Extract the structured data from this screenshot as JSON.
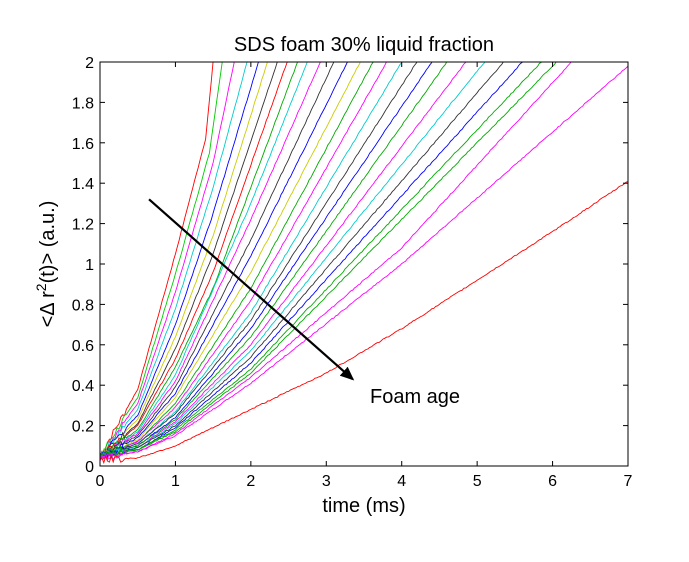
{
  "chart_data": {
    "type": "line",
    "title": "SDS foam 30% liquid fraction",
    "xlabel": "time (ms)",
    "ylabel": {
      "prefix": "<Δ r",
      "sup": "2",
      "suffix": "(t)> (a.u.)"
    },
    "xlim": [
      0,
      7
    ],
    "ylim": [
      0,
      2
    ],
    "x_ticks": [
      0,
      1,
      2,
      3,
      4,
      5,
      6,
      7
    ],
    "y_ticks": [
      0,
      0.2,
      0.4,
      0.6,
      0.8,
      1,
      1.2,
      1.4,
      1.6,
      1.8,
      2
    ],
    "y_tick_labels": [
      "0",
      "0.2",
      "0.4",
      "0.6",
      "0.8",
      "1",
      "1.2",
      "1.4",
      "1.6",
      "1.8",
      "2"
    ],
    "grid": false,
    "legend": "none",
    "annotation": {
      "text": "Foam age",
      "arrow_from": [
        0.65,
        1.32
      ],
      "arrow_to": [
        3.35,
        0.43
      ]
    },
    "series": [
      {
        "color": "#ff0000",
        "points": [
          [
            0,
            0.05
          ],
          [
            0.5,
            0.38
          ],
          [
            1.0,
            1.05
          ],
          [
            1.4,
            1.62
          ],
          [
            1.5,
            2.0
          ]
        ]
      },
      {
        "color": "#00cc00",
        "points": [
          [
            0,
            0.05
          ],
          [
            0.5,
            0.34
          ],
          [
            1.0,
            0.95
          ],
          [
            1.45,
            1.55
          ],
          [
            1.62,
            2.0
          ]
        ]
      },
      {
        "color": "#ff00ff",
        "points": [
          [
            0,
            0.05
          ],
          [
            0.5,
            0.31
          ],
          [
            1.0,
            0.86
          ],
          [
            1.5,
            1.5
          ],
          [
            1.78,
            2.0
          ]
        ]
      },
      {
        "color": "#00cccc",
        "points": [
          [
            0,
            0.05
          ],
          [
            0.5,
            0.28
          ],
          [
            1.0,
            0.78
          ],
          [
            1.5,
            1.38
          ],
          [
            1.95,
            2.0
          ]
        ]
      },
      {
        "color": "#0000ff",
        "points": [
          [
            0,
            0.05
          ],
          [
            0.5,
            0.25
          ],
          [
            1.0,
            0.7
          ],
          [
            1.5,
            1.25
          ],
          [
            2.1,
            2.0
          ]
        ]
      },
      {
        "color": "#cccc00",
        "points": [
          [
            0,
            0.05
          ],
          [
            0.5,
            0.23
          ],
          [
            1.0,
            0.64
          ],
          [
            1.5,
            1.14
          ],
          [
            2.22,
            2.0
          ]
        ]
      },
      {
        "color": "#333333",
        "points": [
          [
            0,
            0.05
          ],
          [
            0.5,
            0.21
          ],
          [
            1.0,
            0.58
          ],
          [
            1.5,
            1.05
          ],
          [
            2.35,
            2.0
          ]
        ]
      },
      {
        "color": "#ff0000",
        "points": [
          [
            0,
            0.05
          ],
          [
            0.5,
            0.2
          ],
          [
            1.0,
            0.53
          ],
          [
            1.5,
            0.96
          ],
          [
            2.48,
            2.0
          ]
        ]
      },
      {
        "color": "#00aa00",
        "points": [
          [
            0,
            0.05
          ],
          [
            0.5,
            0.18
          ],
          [
            1.0,
            0.49
          ],
          [
            1.5,
            0.88
          ],
          [
            2.62,
            2.0
          ]
        ]
      },
      {
        "color": "#00cccc",
        "points": [
          [
            0,
            0.05
          ],
          [
            0.5,
            0.17
          ],
          [
            1.0,
            0.45
          ],
          [
            2.0,
            1.3
          ],
          [
            2.75,
            2.0
          ]
        ]
      },
      {
        "color": "#ff00ff",
        "points": [
          [
            0,
            0.05
          ],
          [
            0.5,
            0.16
          ],
          [
            1.0,
            0.42
          ],
          [
            2.0,
            1.22
          ],
          [
            2.92,
            2.0
          ]
        ]
      },
      {
        "color": "#333333",
        "points": [
          [
            0,
            0.05
          ],
          [
            0.5,
            0.15
          ],
          [
            1.0,
            0.39
          ],
          [
            2.0,
            1.12
          ],
          [
            3.1,
            2.0
          ]
        ]
      },
      {
        "color": "#0000ff",
        "points": [
          [
            0,
            0.05
          ],
          [
            0.5,
            0.14
          ],
          [
            1.0,
            0.36
          ],
          [
            2.0,
            1.04
          ],
          [
            3.28,
            2.0
          ]
        ]
      },
      {
        "color": "#cccc00",
        "points": [
          [
            0,
            0.05
          ],
          [
            0.5,
            0.13
          ],
          [
            1.0,
            0.34
          ],
          [
            2.0,
            0.96
          ],
          [
            3.45,
            2.0
          ]
        ]
      },
      {
        "color": "#00aa00",
        "points": [
          [
            0,
            0.05
          ],
          [
            0.5,
            0.12
          ],
          [
            1.0,
            0.31
          ],
          [
            2.0,
            0.88
          ],
          [
            3.62,
            2.0
          ]
        ]
      },
      {
        "color": "#ff00ff",
        "points": [
          [
            0,
            0.05
          ],
          [
            0.5,
            0.12
          ],
          [
            1.0,
            0.29
          ],
          [
            2.0,
            0.82
          ],
          [
            3.8,
            2.0
          ]
        ]
      },
      {
        "color": "#00cccc",
        "points": [
          [
            0,
            0.05
          ],
          [
            0.5,
            0.11
          ],
          [
            1.0,
            0.27
          ],
          [
            2.0,
            0.76
          ],
          [
            4.0,
            2.0
          ]
        ]
      },
      {
        "color": "#333333",
        "points": [
          [
            0,
            0.05
          ],
          [
            0.5,
            0.11
          ],
          [
            1.0,
            0.26
          ],
          [
            2.0,
            0.72
          ],
          [
            4.2,
            2.0
          ]
        ]
      },
      {
        "color": "#0000ff",
        "points": [
          [
            0,
            0.05
          ],
          [
            0.5,
            0.1
          ],
          [
            1.0,
            0.24
          ],
          [
            2.0,
            0.68
          ],
          [
            4.4,
            2.0
          ]
        ]
      },
      {
        "color": "#00aa00",
        "points": [
          [
            0,
            0.05
          ],
          [
            0.5,
            0.1
          ],
          [
            1.0,
            0.23
          ],
          [
            2.0,
            0.64
          ],
          [
            4.6,
            2.0
          ]
        ]
      },
      {
        "color": "#ff00ff",
        "points": [
          [
            0,
            0.05
          ],
          [
            0.5,
            0.09
          ],
          [
            1.0,
            0.22
          ],
          [
            2.0,
            0.6
          ],
          [
            4.85,
            2.0
          ]
        ]
      },
      {
        "color": "#00cccc",
        "points": [
          [
            0,
            0.05
          ],
          [
            0.5,
            0.09
          ],
          [
            1.0,
            0.21
          ],
          [
            2.0,
            0.57
          ],
          [
            5.1,
            2.0
          ]
        ]
      },
      {
        "color": "#333333",
        "points": [
          [
            0,
            0.05
          ],
          [
            0.5,
            0.09
          ],
          [
            1.0,
            0.2
          ],
          [
            2.0,
            0.54
          ],
          [
            5.35,
            2.0
          ]
        ]
      },
      {
        "color": "#0000ff",
        "points": [
          [
            0,
            0.05
          ],
          [
            0.5,
            0.08
          ],
          [
            1.0,
            0.19
          ],
          [
            2.0,
            0.51
          ],
          [
            5.6,
            2.0
          ]
        ]
      },
      {
        "color": "#00aa00",
        "points": [
          [
            0,
            0.05
          ],
          [
            0.5,
            0.08
          ],
          [
            1.0,
            0.18
          ],
          [
            2.0,
            0.48
          ],
          [
            5.85,
            2.0
          ]
        ]
      },
      {
        "color": "#00aa00",
        "points": [
          [
            0,
            0.05
          ],
          [
            0.5,
            0.08
          ],
          [
            1.0,
            0.17
          ],
          [
            2.0,
            0.46
          ],
          [
            6.05,
            2.0
          ]
        ]
      },
      {
        "color": "#ff00ff",
        "points": [
          [
            0,
            0.04
          ],
          [
            0.5,
            0.07
          ],
          [
            1.0,
            0.16
          ],
          [
            2.0,
            0.44
          ],
          [
            4.0,
            1.08
          ],
          [
            6.25,
            2.0
          ]
        ]
      },
      {
        "color": "#ff00ff",
        "points": [
          [
            0,
            0.04
          ],
          [
            0.5,
            0.07
          ],
          [
            1.0,
            0.15
          ],
          [
            2.0,
            0.41
          ],
          [
            4.0,
            1.0
          ],
          [
            7.0,
            1.98
          ]
        ]
      },
      {
        "color": "#ff0000",
        "points": [
          [
            0,
            0.03
          ],
          [
            0.5,
            0.04
          ],
          [
            1.0,
            0.1
          ],
          [
            2.0,
            0.28
          ],
          [
            3.0,
            0.46
          ],
          [
            4.0,
            0.68
          ],
          [
            5.0,
            0.92
          ],
          [
            6.0,
            1.16
          ],
          [
            7.0,
            1.41
          ]
        ]
      }
    ]
  }
}
